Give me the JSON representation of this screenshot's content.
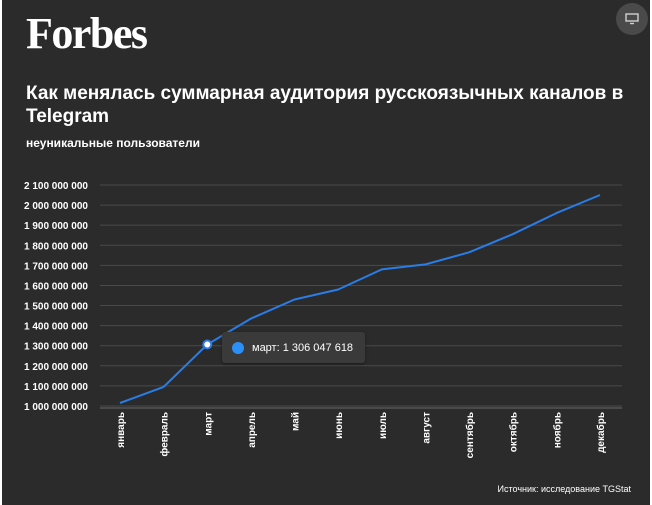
{
  "brand": {
    "logo": "Forbes",
    "fullscreen_icon": "monitor-icon"
  },
  "header": {
    "title": "Как менялась суммарная аудитория русскоязычных каналов в Telegram",
    "subtitle": "неуникальные пользователи"
  },
  "footer": {
    "source": "Источник: исследование TGStat"
  },
  "colors": {
    "background": "#2b2b2b",
    "line": "#2a7ce6",
    "grid": "#4a4a4a",
    "text": "#ffffff"
  },
  "tooltip": {
    "label": "март: 1 306 047 618"
  },
  "chart_data": {
    "type": "line",
    "title": "Как менялась суммарная аудитория русскоязычных каналов в Telegram",
    "subtitle": "неуникальные пользователи",
    "categories": [
      "январь",
      "февраль",
      "март",
      "апрель",
      "май",
      "июнь",
      "июль",
      "август",
      "сентябрь",
      "октябрь",
      "ноябрь",
      "декабрь"
    ],
    "series": [
      {
        "values": [
          1015000000,
          1095000000,
          1306047618,
          1435000000,
          1530000000,
          1580000000,
          1680000000,
          1705000000,
          1765000000,
          1855000000,
          1960000000,
          2050000000
        ]
      }
    ],
    "y_ticks": [
      1000000000,
      1100000000,
      1200000000,
      1300000000,
      1400000000,
      1500000000,
      1600000000,
      1700000000,
      1800000000,
      1900000000,
      2000000000,
      2100000000
    ],
    "y_tick_labels": [
      "1 000 000 000",
      "1 100 000 000",
      "1 200 000 000",
      "1 300 000 000",
      "1 400 000 000",
      "1 500 000 000",
      "1 600 000 000",
      "1 700 000 000",
      "1 800 000 000",
      "1 900 000 000",
      "2 000 000 000",
      "2 100 000 000"
    ],
    "ylim": [
      990000000,
      2100000000
    ],
    "grid": true,
    "legend": false,
    "highlighted_category": "март"
  }
}
